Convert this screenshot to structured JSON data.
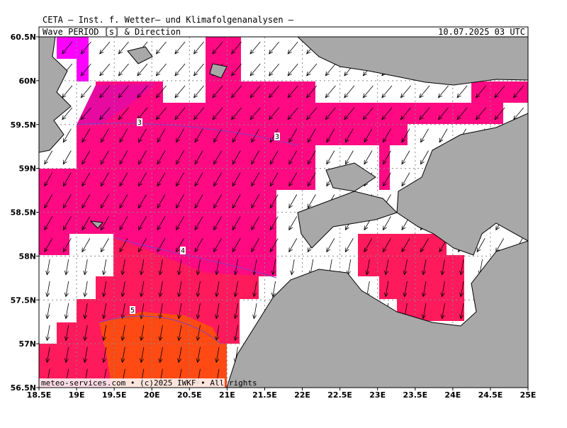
{
  "header": {
    "institute": "CETA — Inst. f. Wetter— und Klimafolgenanalysen —",
    "title": "Wave PERIOD [s] & Direction",
    "valid_time": "10.07.2025 03 UTC"
  },
  "map": {
    "lat_labels": [
      "60.5N",
      "60N",
      "59.5N",
      "59N",
      "58.5N",
      "58N",
      "57.5N",
      "57N",
      "56.5N"
    ],
    "lon_labels": [
      "18.5E",
      "19E",
      "19.5E",
      "20E",
      "20.5E",
      "21E",
      "21.5E",
      "22E",
      "22.5E",
      "23E",
      "23.5E",
      "24E",
      "24.5E",
      "25E"
    ],
    "contour_labels": [
      "3",
      "3",
      "4",
      "5"
    ],
    "credit": "meteo-services.com • (c)2025 IWKF • All rights"
  }
}
